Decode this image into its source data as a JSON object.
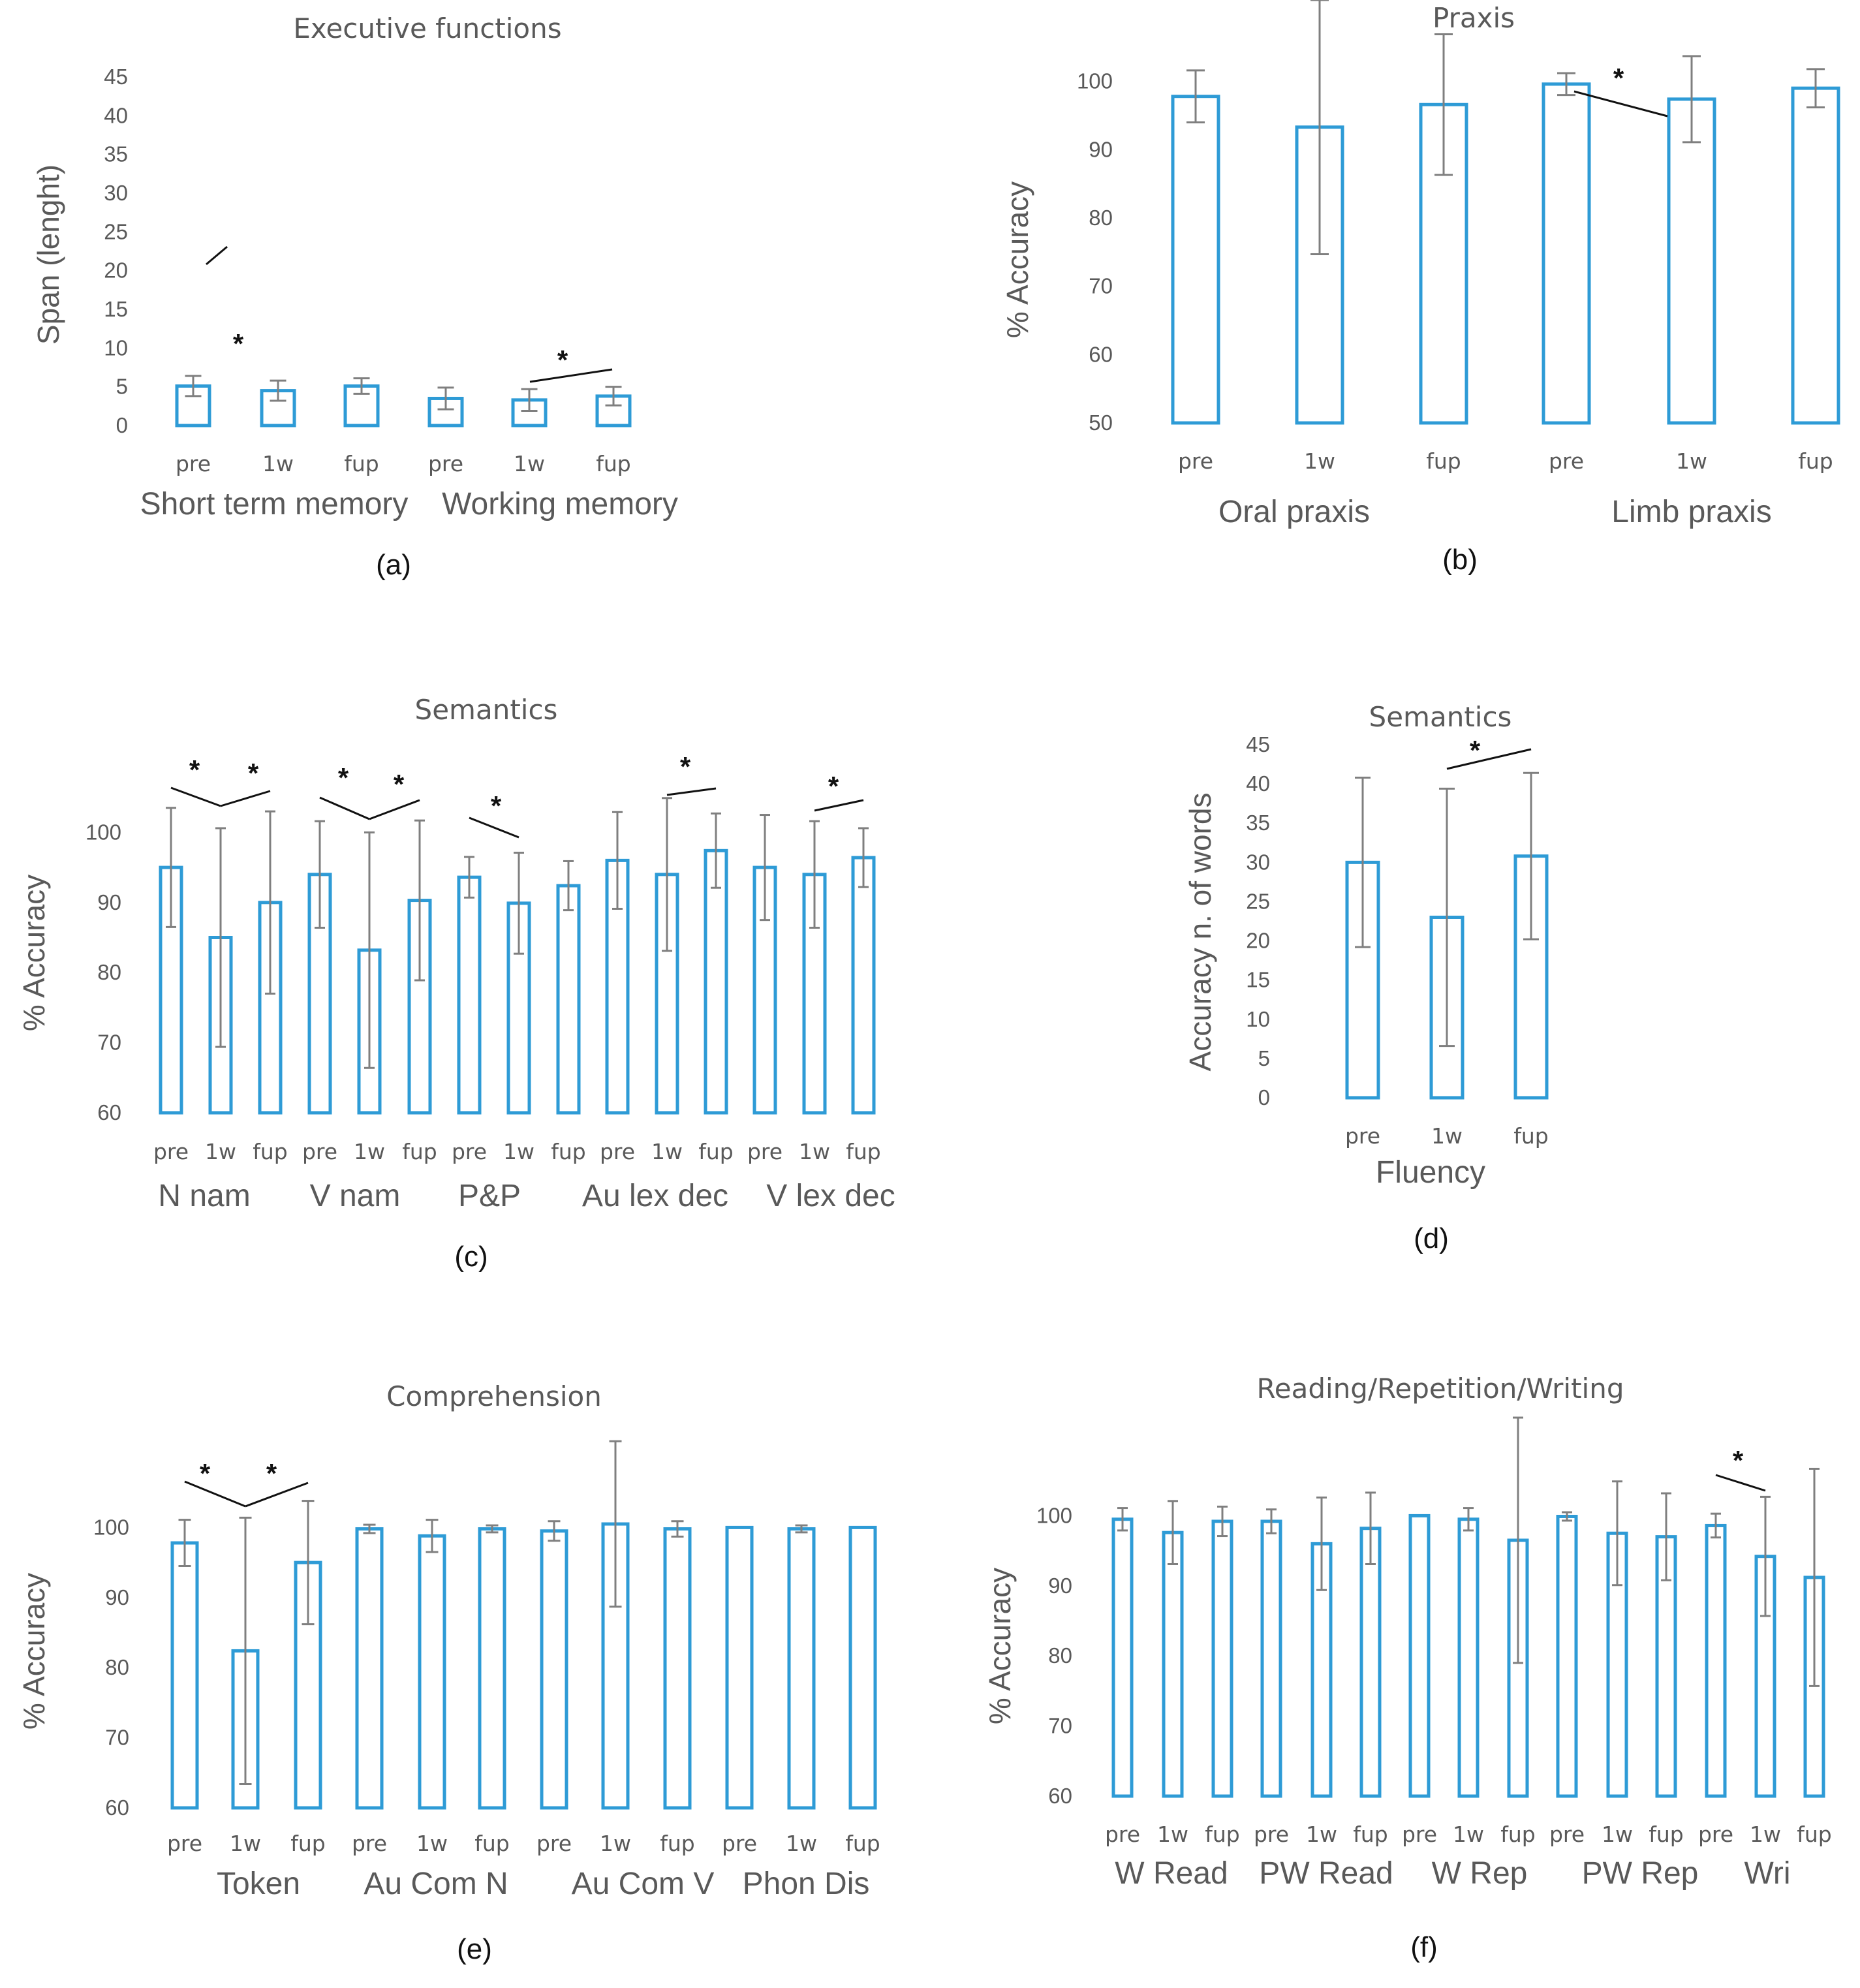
{
  "colors": {
    "bar_stroke": "#2e9bd6",
    "error_bar": "#7f7f7f",
    "text": "#595959",
    "significance": "#111111"
  },
  "chart_data": [
    {
      "id": "a",
      "type": "bar",
      "title": "Executive functions",
      "panel_label": "(a)",
      "ylabel": "Span (lenght)",
      "ylim": [
        0,
        45
      ],
      "yticks": [
        0,
        5,
        10,
        15,
        20,
        25,
        30,
        35,
        40,
        45
      ],
      "categories": [
        "pre",
        "1w",
        "fup",
        "pre",
        "1w",
        "fup"
      ],
      "groups": [
        {
          "label": "Short term memory",
          "span": [
            0,
            2
          ]
        },
        {
          "label": "Working memory",
          "span": [
            3,
            5
          ]
        }
      ],
      "values": [
        5.1,
        4.5,
        5.1,
        3.5,
        3.3,
        3.8
      ],
      "errors": [
        1.3,
        1.3,
        1.0,
        1.4,
        1.4,
        1.2
      ],
      "significance": [
        {
          "from": 0,
          "to": 1,
          "label": "*"
        },
        {
          "from": 4,
          "to": 5,
          "label": "*"
        }
      ]
    },
    {
      "id": "b",
      "type": "bar",
      "title": "Praxis",
      "panel_label": "(b)",
      "ylabel": "% Accuracy",
      "ylim": [
        50,
        110
      ],
      "yticks": [
        50,
        60,
        70,
        80,
        90,
        100
      ],
      "categories": [
        "pre",
        "1w",
        "fup",
        "pre",
        "1w",
        "fup"
      ],
      "groups": [
        {
          "label": "Oral praxis",
          "span": [
            0,
            2
          ]
        },
        {
          "label": "Limb praxis",
          "span": [
            3,
            5
          ]
        }
      ],
      "values": [
        97.8,
        93.3,
        96.6,
        99.6,
        97.4,
        99.0
      ],
      "errors": [
        3.8,
        18.6,
        10.3,
        1.6,
        6.3,
        2.8
      ],
      "significance": [
        {
          "from": 3,
          "to": 4,
          "label": "*"
        }
      ]
    },
    {
      "id": "c",
      "type": "bar",
      "title": "Semantics",
      "panel_label": "(c)",
      "ylabel": "% Accuracy",
      "ylim": [
        60,
        110
      ],
      "yticks": [
        60,
        70,
        80,
        90,
        100
      ],
      "categories": [
        "pre",
        "1w",
        "fup",
        "pre",
        "1w",
        "fup",
        "pre",
        "1w",
        "fup",
        "pre",
        "1w",
        "fup",
        "pre",
        "1w",
        "fup"
      ],
      "groups": [
        {
          "label": "N nam",
          "span": [
            0,
            2
          ]
        },
        {
          "label": "V nam",
          "span": [
            3,
            5
          ]
        },
        {
          "label": "P&P",
          "span": [
            6,
            8
          ]
        },
        {
          "label": "Au lex dec",
          "span": [
            9,
            11
          ]
        },
        {
          "label": "V lex dec",
          "span": [
            12,
            14
          ]
        }
      ],
      "values": [
        95.0,
        85.0,
        90.0,
        94.0,
        83.2,
        90.3,
        93.6,
        89.9,
        92.4,
        96.0,
        94.0,
        97.4,
        95.0,
        94.0,
        96.4
      ],
      "errors": [
        8.5,
        15.6,
        13.0,
        7.6,
        16.8,
        11.4,
        2.9,
        7.2,
        3.5,
        6.9,
        10.9,
        5.3,
        7.5,
        7.6,
        4.2
      ],
      "significance": [
        {
          "from": 0,
          "to": 1,
          "label": "*"
        },
        {
          "from": 1,
          "to": 2,
          "label": "*"
        },
        {
          "from": 3,
          "to": 4,
          "label": "*"
        },
        {
          "from": 4,
          "to": 5,
          "label": "*"
        },
        {
          "from": 6,
          "to": 7,
          "label": "*"
        },
        {
          "from": 10,
          "to": 11,
          "label": "*"
        },
        {
          "from": 13,
          "to": 14,
          "label": "*"
        }
      ]
    },
    {
      "id": "d",
      "type": "bar",
      "title": "Semantics",
      "panel_label": "(d)",
      "ylabel": "Accuracy    n. of words",
      "ylim": [
        0,
        45
      ],
      "yticks": [
        0,
        5,
        10,
        15,
        20,
        25,
        30,
        35,
        40,
        45
      ],
      "categories": [
        "pre",
        "1w",
        "fup"
      ],
      "groups": [
        {
          "label": "Fluency",
          "span": [
            0,
            2
          ]
        }
      ],
      "values": [
        30.0,
        23.0,
        30.8
      ],
      "errors": [
        10.8,
        16.4,
        10.6
      ],
      "significance": [
        {
          "from": 1,
          "to": 2,
          "label": "*"
        }
      ]
    },
    {
      "id": "e",
      "type": "bar",
      "title": "Comprehension",
      "panel_label": "(e)",
      "ylabel": "% Accuracy",
      "ylim": [
        60,
        110
      ],
      "yticks": [
        60,
        70,
        80,
        90,
        100
      ],
      "categories": [
        "pre",
        "1w",
        "fup",
        "pre",
        "1w",
        "fup",
        "pre",
        "1w",
        "fup",
        "pre",
        "1w",
        "fup"
      ],
      "groups": [
        {
          "label": "Token",
          "span": [
            0,
            2
          ]
        },
        {
          "label": "Au Com N",
          "span": [
            3,
            5
          ]
        },
        {
          "label": "Au Com V",
          "span": [
            6,
            8
          ]
        },
        {
          "label": "Phon Dis",
          "span": [
            9,
            11
          ]
        }
      ],
      "values": [
        97.8,
        82.4,
        95.0,
        99.8,
        98.8,
        99.8,
        99.5,
        100.5,
        99.8,
        100.0,
        99.8,
        100.0
      ],
      "errors": [
        3.3,
        19.0,
        8.8,
        0.6,
        2.3,
        0.5,
        1.4,
        11.8,
        1.1,
        0.0,
        0.5,
        0.0
      ],
      "significance": [
        {
          "from": 0,
          "to": 1,
          "label": "*"
        },
        {
          "from": 1,
          "to": 2,
          "label": "*"
        }
      ]
    },
    {
      "id": "f",
      "type": "bar",
      "title": "Reading/Repetition/Writing",
      "panel_label": "(f)",
      "ylabel": "% Accuracy",
      "ylim": [
        60,
        110
      ],
      "yticks": [
        60,
        70,
        80,
        90,
        100
      ],
      "categories": [
        "pre",
        "1w",
        "fup",
        "pre",
        "1w",
        "fup",
        "pre",
        "1w",
        "fup",
        "pre",
        "1w",
        "fup",
        "pre",
        "1w",
        "fup"
      ],
      "groups": [
        {
          "label": "W Read",
          "span": [
            0,
            2
          ]
        },
        {
          "label": "PW Read",
          "span": [
            3,
            5
          ]
        },
        {
          "label": "W Rep",
          "span": [
            6,
            8
          ]
        },
        {
          "label": "PW Rep",
          "span": [
            9,
            11
          ]
        },
        {
          "label": "Wri",
          "span": [
            12,
            14
          ]
        }
      ],
      "values": [
        99.5,
        97.6,
        99.2,
        99.2,
        96.0,
        98.2,
        100.0,
        99.5,
        96.5,
        99.9,
        97.5,
        97.0,
        98.6,
        94.2,
        91.2
      ],
      "errors": [
        1.6,
        4.5,
        2.1,
        1.7,
        6.6,
        5.1,
        0.0,
        1.6,
        17.5,
        0.6,
        7.4,
        6.2,
        1.7,
        8.5,
        15.5
      ],
      "significance": [
        {
          "from": 12,
          "to": 13,
          "label": "*"
        }
      ]
    }
  ]
}
